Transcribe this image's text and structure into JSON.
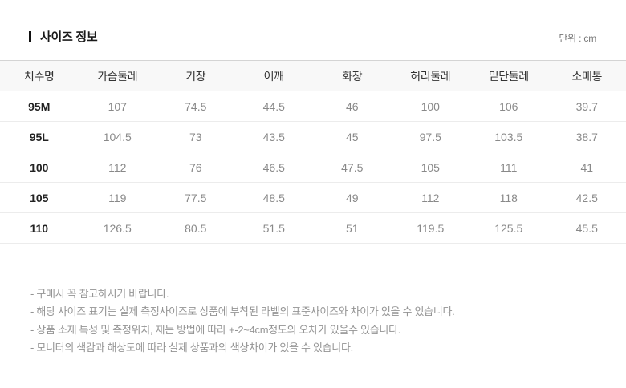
{
  "section": {
    "title": "사이즈 정보",
    "unit_label": "단위 : cm"
  },
  "table": {
    "columns": [
      "치수명",
      "가슴둘레",
      "기장",
      "어깨",
      "화장",
      "허리둘레",
      "밑단둘레",
      "소매통"
    ],
    "rows": [
      {
        "name": "95M",
        "values": [
          "107",
          "74.5",
          "44.5",
          "46",
          "100",
          "106",
          "39.7"
        ]
      },
      {
        "name": "95L",
        "values": [
          "104.5",
          "73",
          "43.5",
          "45",
          "97.5",
          "103.5",
          "38.7"
        ]
      },
      {
        "name": "100",
        "values": [
          "112",
          "76",
          "46.5",
          "47.5",
          "105",
          "111",
          "41"
        ]
      },
      {
        "name": "105",
        "values": [
          "119",
          "77.5",
          "48.5",
          "49",
          "112",
          "118",
          "42.5"
        ]
      },
      {
        "name": "110",
        "values": [
          "126.5",
          "80.5",
          "51.5",
          "51",
          "119.5",
          "125.5",
          "45.5"
        ]
      }
    ]
  },
  "notes": [
    "- 구매시 꼭 참고하시기 바랍니다.",
    "- 해당 사이즈 표기는 실제 측정사이즈로 상품에 부착된 라벨의 표준사이즈와 차이가 있을 수 있습니다.",
    "- 상품 소재 특성 및 측정위치, 재는 방법에 따라 +-2~4cm정도의 오차가 있을수 있습니다.",
    "- 모니터의 색감과 해상도에 따라 실제 상품과의 색상차이가 있을 수 있습니다."
  ],
  "colors": {
    "accent_bar": "#111111",
    "header_background": "#f8f8f8",
    "header_text": "#333333",
    "value_text": "#898989",
    "note_text": "#949494",
    "table_top_border": "#d4d4d4",
    "row_border": "#ececec"
  }
}
